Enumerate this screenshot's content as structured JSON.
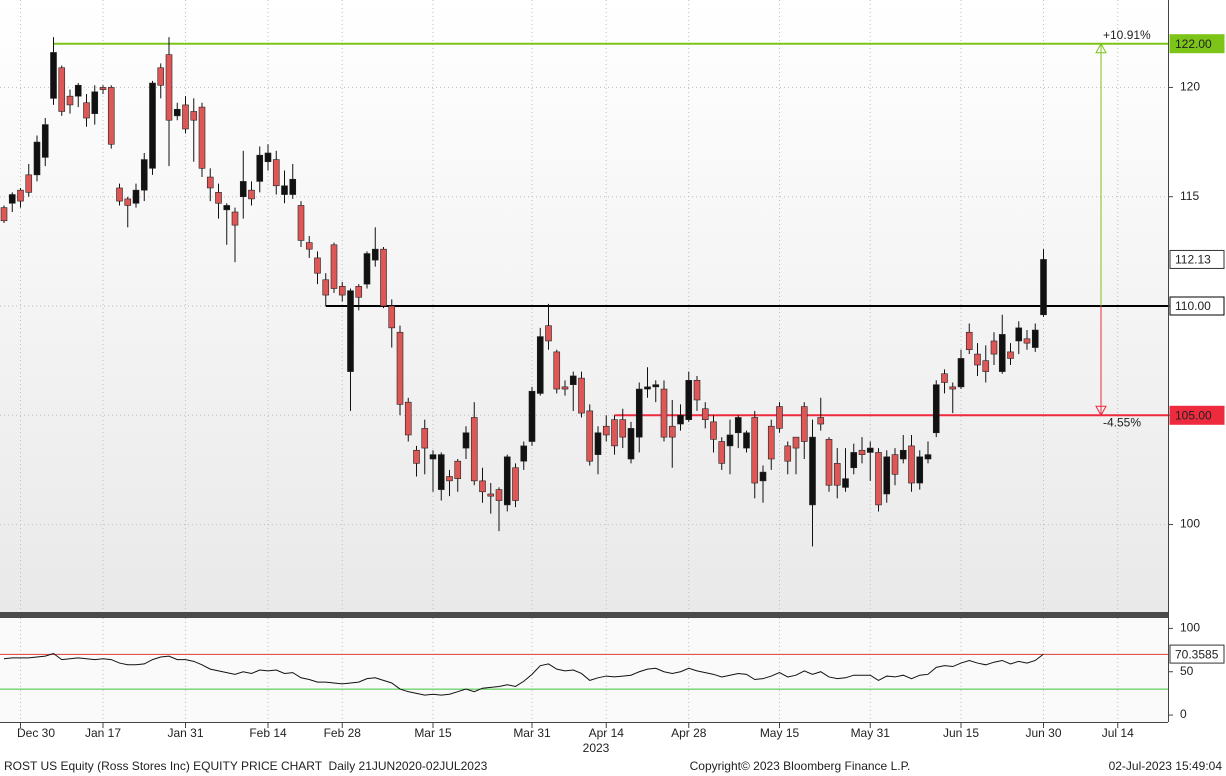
{
  "chart_data": {
    "type": "candlestick",
    "categories": [
      null,
      null,
      "Dec 30",
      null,
      null,
      null,
      null,
      null,
      null,
      null,
      null,
      null,
      "Jan 17",
      null,
      null,
      null,
      null,
      null,
      null,
      null,
      null,
      null,
      "Jan 31",
      null,
      null,
      null,
      null,
      null,
      null,
      null,
      null,
      null,
      "Feb 14",
      null,
      null,
      null,
      null,
      null,
      null,
      null,
      null,
      "Feb 28",
      null,
      null,
      null,
      null,
      null,
      null,
      null,
      null,
      null,
      null,
      "Mar 15",
      null,
      null,
      null,
      null,
      null,
      null,
      null,
      null,
      null,
      null,
      null,
      "Mar 31",
      null,
      null,
      null,
      null,
      null,
      null,
      null,
      null,
      "Apr 14",
      null,
      null,
      null,
      null,
      null,
      null,
      null,
      null,
      null,
      "Apr 28",
      null,
      null,
      null,
      null,
      null,
      null,
      null,
      null,
      null,
      null,
      "May 15",
      null,
      null,
      null,
      null,
      null,
      null,
      null,
      null,
      null,
      null,
      "May 31",
      null,
      null,
      null,
      null,
      null,
      null,
      null,
      null,
      null,
      null,
      "Jun 15",
      null,
      null,
      null,
      null,
      null,
      null,
      null,
      null,
      null,
      "Jun 30",
      null,
      null,
      null,
      null,
      null,
      null,
      null,
      null,
      "Jul 14",
      null,
      null,
      null,
      null,
      null,
      null
    ],
    "year_label": "2023",
    "open": [
      114.5,
      114.7,
      115.3,
      116.0,
      116.0,
      116.8,
      119.5,
      120.9,
      119.6,
      119.6,
      119.3,
      118.8,
      120.0,
      120.0,
      115.4,
      114.9,
      114.7,
      115.3,
      116.3,
      120.9,
      121.5,
      118.7,
      119.2,
      118.9,
      119.1,
      115.9,
      115.2,
      114.4,
      114.3,
      115.0,
      115.3,
      115.7,
      116.6,
      116.7,
      115.1,
      115.1,
      114.6,
      112.9,
      112.2,
      111.2,
      112.8,
      110.9,
      107.0,
      110.9,
      111.0,
      112.1,
      112.6,
      110.0,
      108.8,
      105.6,
      103.4,
      104.4,
      103.0,
      101.6,
      102.2,
      102.9,
      103.5,
      104.9,
      102.0,
      101.4,
      101.6,
      100.9,
      102.6,
      102.9,
      103.8,
      106.0,
      109.1,
      107.9,
      106.3,
      106.4,
      106.7,
      105.2,
      103.2,
      104.5,
      104.8,
      104.8,
      103.0,
      104.0,
      106.2,
      106.3,
      106.2,
      104.5,
      104.6,
      104.8,
      106.6,
      105.3,
      104.7,
      103.8,
      103.6,
      104.2,
      103.5,
      104.9,
      102.0,
      104.5,
      105.4,
      103.6,
      104.0,
      105.4,
      100.9,
      104.9,
      103.9,
      102.8,
      101.7,
      102.6,
      103.4,
      103.3,
      103.3,
      101.4,
      103.2,
      103.0,
      103.6,
      101.9,
      103.0,
      104.2,
      106.9,
      106.3,
      106.3,
      108.8,
      107.8,
      107.5,
      108.4,
      107.0,
      107.9,
      108.4,
      108.5,
      108.1,
      109.6,
      null,
      null,
      null,
      null,
      null,
      null,
      null,
      null,
      null,
      null,
      null,
      null,
      null,
      null,
      null
    ],
    "high": [
      114.6,
      115.2,
      115.4,
      116.5,
      117.8,
      118.6,
      122.3,
      121.0,
      119.9,
      120.2,
      119.7,
      120.1,
      120.1,
      120.1,
      115.6,
      115.0,
      115.6,
      117.0,
      120.3,
      121.1,
      122.3,
      119.3,
      119.6,
      119.5,
      119.3,
      116.3,
      115.6,
      114.7,
      114.5,
      117.1,
      115.7,
      117.3,
      117.4,
      117.1,
      116.2,
      116.5,
      114.8,
      113.2,
      112.5,
      111.5,
      112.9,
      111.1,
      110.8,
      111.0,
      112.5,
      113.6,
      112.7,
      110.3,
      109.1,
      105.8,
      103.6,
      104.8,
      103.4,
      103.3,
      102.5,
      103.0,
      104.5,
      105.6,
      102.6,
      101.9,
      101.7,
      103.2,
      102.8,
      103.8,
      106.3,
      109.0,
      110.1,
      108.0,
      106.6,
      107.0,
      107.0,
      105.5,
      104.5,
      105.0,
      105.0,
      105.3,
      104.7,
      106.5,
      107.2,
      106.6,
      106.6,
      105.7,
      105.5,
      107.0,
      106.8,
      105.6,
      105.0,
      104.0,
      104.8,
      105.0,
      104.3,
      105.2,
      102.7,
      104.8,
      105.6,
      103.8,
      104.0,
      105.6,
      104.8,
      105.8,
      104.0,
      103.5,
      103.5,
      103.7,
      104.0,
      103.8,
      103.5,
      103.4,
      103.5,
      104.1,
      104.1,
      103.4,
      103.8,
      106.6,
      107.1,
      106.5,
      108.0,
      109.2,
      108.3,
      108.2,
      108.8,
      109.6,
      108.3,
      109.3,
      108.9,
      109.2,
      112.6,
      null,
      null,
      null,
      null,
      null,
      null,
      null,
      null,
      null,
      null,
      null,
      null,
      null,
      null,
      null
    ],
    "low": [
      113.8,
      114.3,
      114.5,
      115.0,
      115.7,
      116.4,
      119.2,
      118.7,
      118.8,
      119.1,
      118.2,
      118.3,
      119.7,
      117.2,
      114.6,
      113.6,
      114.5,
      114.8,
      116.0,
      119.5,
      116.4,
      118.5,
      117.9,
      116.6,
      115.9,
      114.8,
      114.0,
      112.8,
      112.0,
      114.0,
      114.6,
      115.2,
      116.2,
      115.1,
      114.7,
      114.9,
      112.7,
      112.2,
      111.0,
      110.0,
      110.6,
      110.2,
      105.2,
      109.8,
      110.8,
      111.8,
      109.9,
      108.1,
      105.0,
      103.8,
      102.2,
      102.3,
      101.5,
      101.1,
      101.3,
      101.5,
      103.0,
      101.8,
      101.0,
      100.5,
      99.7,
      100.6,
      100.8,
      102.5,
      103.6,
      105.9,
      108.0,
      106.0,
      105.9,
      105.2,
      104.9,
      102.7,
      102.3,
      103.8,
      103.2,
      103.5,
      102.8,
      103.3,
      105.8,
      105.6,
      103.8,
      102.6,
      104.3,
      104.7,
      105.2,
      104.4,
      103.3,
      102.5,
      102.3,
      103.5,
      103.3,
      101.2,
      101.0,
      102.5,
      104.2,
      102.3,
      102.3,
      103.0,
      99.0,
      104.3,
      101.5,
      101.2,
      101.5,
      102.3,
      102.8,
      102.0,
      100.6,
      101.0,
      101.8,
      102.8,
      101.5,
      101.6,
      102.8,
      104.0,
      106.0,
      105.1,
      106.2,
      107.8,
      106.8,
      106.5,
      107.3,
      106.9,
      107.3,
      107.8,
      108.0,
      107.9,
      109.5,
      null,
      null,
      null,
      null,
      null,
      null,
      null,
      null,
      null,
      null,
      null,
      null,
      null,
      null,
      null
    ],
    "close": [
      113.9,
      115.1,
      114.8,
      115.2,
      117.5,
      118.3,
      121.6,
      118.9,
      119.2,
      120.1,
      118.6,
      119.8,
      119.9,
      117.4,
      114.8,
      114.6,
      115.3,
      116.7,
      120.2,
      120.1,
      118.5,
      119.0,
      118.1,
      118.5,
      116.3,
      115.4,
      114.7,
      114.6,
      113.7,
      115.7,
      114.9,
      116.9,
      117.0,
      115.5,
      115.5,
      115.8,
      113.0,
      112.6,
      111.5,
      110.5,
      110.8,
      110.5,
      110.7,
      110.4,
      112.4,
      112.6,
      110.0,
      109.0,
      105.5,
      104.1,
      102.8,
      103.5,
      103.2,
      103.2,
      102.0,
      102.1,
      104.2,
      102.0,
      101.5,
      101.3,
      101.1,
      103.1,
      101.1,
      103.6,
      106.1,
      108.6,
      108.4,
      106.2,
      106.2,
      106.8,
      105.1,
      102.9,
      104.2,
      104.1,
      103.6,
      104.0,
      104.4,
      106.2,
      106.3,
      106.4,
      104.0,
      104.0,
      105.0,
      106.6,
      105.7,
      104.8,
      103.9,
      102.8,
      104.1,
      104.9,
      104.2,
      101.9,
      102.4,
      103.0,
      104.4,
      102.9,
      103.5,
      103.8,
      104.0,
      104.6,
      101.8,
      101.8,
      102.1,
      103.3,
      103.2,
      103.5,
      100.9,
      103.1,
      102.3,
      103.4,
      101.9,
      103.1,
      103.2,
      106.4,
      106.5,
      106.2,
      107.6,
      108.0,
      107.3,
      107.0,
      107.8,
      108.7,
      107.6,
      109.0,
      108.3,
      108.9,
      112.13,
      null,
      null,
      null,
      null,
      null,
      null,
      null,
      null,
      null,
      null,
      null,
      null,
      null,
      null,
      null
    ],
    "up_color": "#111111",
    "down_color": "#de5757",
    "ylim": [
      96,
      124
    ],
    "yticks": [
      100,
      105,
      110,
      115,
      120
    ],
    "grid": true,
    "levels": [
      {
        "value": 122,
        "label": "122.00",
        "color": "#7cc417"
      },
      {
        "value": 110,
        "label": "110.00",
        "color": "#000000"
      },
      {
        "value": 105,
        "label": "105.00",
        "color": "#ee2a3e"
      }
    ],
    "last_price": {
      "value": 112.13,
      "label": "112.13"
    },
    "moves": [
      {
        "value": 10.91,
        "label": "+10.91%",
        "color": "#7cc417"
      },
      {
        "value": -4.55,
        "label": "-4.55%",
        "color": "#ee2a3e"
      }
    ],
    "indicator": {
      "type": "line",
      "color": "#111111",
      "values": [
        65,
        66,
        66,
        66,
        67,
        68,
        71,
        64,
        65,
        66,
        65,
        64,
        65,
        64,
        60,
        58,
        58,
        59,
        64,
        67,
        68,
        64,
        64,
        62,
        58,
        53,
        51,
        49,
        47,
        50,
        48,
        52,
        51,
        52,
        48,
        49,
        43,
        41,
        38,
        38,
        37,
        36,
        37,
        38,
        42,
        43,
        40,
        37,
        30,
        27,
        25,
        23,
        24,
        23,
        24,
        27,
        30,
        27,
        31,
        32,
        33,
        35,
        33,
        39,
        47,
        57,
        59,
        53,
        51,
        52,
        48,
        40,
        43,
        45,
        44,
        45,
        46,
        50,
        53,
        54,
        50,
        48,
        50,
        54,
        51,
        49,
        47,
        44,
        46,
        48,
        47,
        41,
        42,
        45,
        49,
        44,
        46,
        51,
        47,
        50,
        44,
        42,
        43,
        46,
        46,
        46,
        40,
        45,
        44,
        46,
        42,
        46,
        47,
        55,
        57,
        56,
        60,
        63,
        60,
        58,
        61,
        63,
        59,
        62,
        60,
        63,
        70.3585,
        null,
        null,
        null,
        null,
        null,
        null,
        null,
        null,
        null,
        null,
        null,
        null,
        null,
        null,
        null
      ],
      "ylim": [
        -8,
        112
      ],
      "yticks": [
        0,
        50,
        100
      ],
      "levels": [
        {
          "value": 70,
          "color": "#d9413b"
        },
        {
          "value": 30,
          "color": "#3cc43c"
        }
      ],
      "last": {
        "value": 70.3585,
        "label": "70.3585"
      }
    }
  },
  "footer": {
    "left": "ROST US Equity (Ross Stores Inc) EQUITY PRICE CHART  Daily 21JUN2020-02JUL2023",
    "center": "Copyright© 2023 Bloomberg Finance L.P.",
    "right": "02-Jul-2023 15:49:04"
  }
}
